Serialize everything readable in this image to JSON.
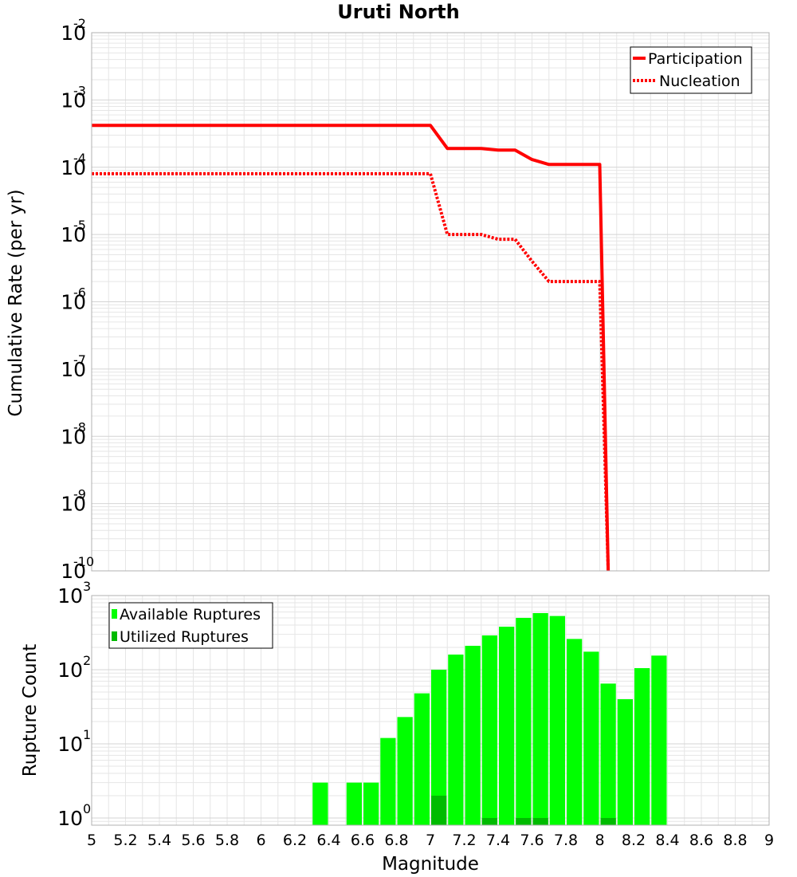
{
  "title": "Uruti North",
  "colors": {
    "participation": "#ff0000",
    "nucleation": "#ff0000",
    "available": "#00ff00",
    "utilized": "#00bb00",
    "grid": "#e6e6e6",
    "frame": "#b0b0b0"
  },
  "chart_data": [
    {
      "type": "line",
      "title": "Uruti North",
      "xlabel": "",
      "ylabel": "Cumulative Rate (per yr)",
      "xlim": [
        5,
        9
      ],
      "ylim": [
        1e-10,
        0.01
      ],
      "yscale": "log",
      "y_tick_exponents": [
        "-2",
        "-3",
        "-4",
        "-5",
        "-6",
        "-7",
        "-8",
        "-9",
        "-10"
      ],
      "grid": true,
      "legend": "top-right",
      "series": [
        {
          "name": "Participation",
          "style": "solid",
          "x": [
            5.0,
            7.0,
            7.1,
            7.3,
            7.4,
            7.5,
            7.6,
            7.7,
            8.0,
            8.05
          ],
          "y": [
            0.00042,
            0.00042,
            0.00019,
            0.00019,
            0.00018,
            0.00018,
            0.00013,
            0.00011,
            0.00011,
            1e-10
          ]
        },
        {
          "name": "Nucleation",
          "style": "dotted",
          "x": [
            5.0,
            7.0,
            7.1,
            7.3,
            7.4,
            7.5,
            7.6,
            7.7,
            8.0,
            8.05
          ],
          "y": [
            8e-05,
            8e-05,
            1e-05,
            1e-05,
            8.5e-06,
            8.5e-06,
            4e-06,
            2e-06,
            2e-06,
            1e-10
          ]
        }
      ]
    },
    {
      "type": "bar",
      "xlabel": "Magnitude",
      "ylabel": "Rupture Count",
      "xlim": [
        5,
        9
      ],
      "ylim": [
        0.8,
        1000
      ],
      "yscale": "log",
      "y_tick_exponents": [
        "3",
        "2",
        "1",
        "0"
      ],
      "x_ticks": [
        "5",
        "5.2",
        "5.4",
        "5.6",
        "5.8",
        "6",
        "6.2",
        "6.4",
        "6.6",
        "6.8",
        "7",
        "7.2",
        "7.4",
        "7.6",
        "7.8",
        "8",
        "8.2",
        "8.4",
        "8.6",
        "8.8",
        "9"
      ],
      "grid": true,
      "legend": "top-left",
      "bin_width": 0.1,
      "series": [
        {
          "name": "Available Ruptures",
          "x": [
            6.35,
            6.55,
            6.65,
            6.75,
            6.85,
            6.95,
            7.05,
            7.15,
            7.25,
            7.35,
            7.45,
            7.55,
            7.65,
            7.75,
            7.85,
            7.95,
            8.05,
            8.15,
            8.25,
            8.35
          ],
          "values": [
            3,
            3,
            3,
            12,
            23,
            48,
            100,
            160,
            210,
            290,
            380,
            500,
            580,
            530,
            260,
            175,
            65,
            40,
            105,
            155
          ]
        },
        {
          "name": "Utilized Ruptures",
          "x": [
            7.05,
            7.35,
            7.55,
            7.65,
            8.05
          ],
          "values": [
            2,
            1,
            1,
            1,
            1
          ]
        }
      ]
    }
  ]
}
